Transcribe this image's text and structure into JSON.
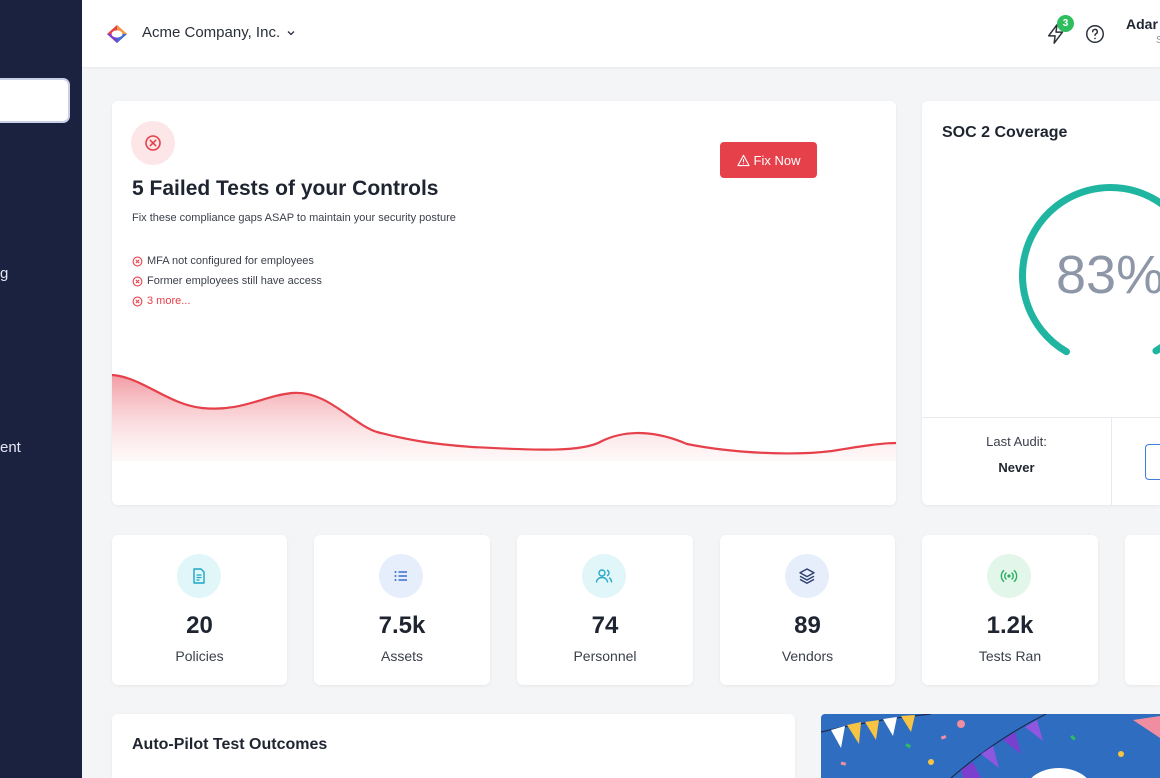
{
  "sidebar": {
    "partial_items": [
      "g",
      "ent"
    ]
  },
  "header": {
    "company": "Acme Company, Inc.",
    "notifications_count": "3",
    "user_name": "Adar",
    "user_sub": "S"
  },
  "failed_card": {
    "title": "5 Failed Tests of your Controls",
    "subtitle": "Fix these compliance gaps ASAP to maintain your security posture",
    "fix_button": "Fix Now",
    "items": [
      "MFA not configured for employees",
      "Former employees still have access",
      "3 more..."
    ]
  },
  "soc_card": {
    "title": "SOC 2 Coverage",
    "percent_text": "83%",
    "percent_value": 83,
    "last_audit_label": "Last Audit:",
    "last_audit_value": "Never"
  },
  "stats": [
    {
      "value": "20",
      "label": "Policies",
      "icon": "document-icon",
      "color": "#1aa7c4",
      "bg": "#e1f6f9"
    },
    {
      "value": "7.5k",
      "label": "Assets",
      "icon": "list-icon",
      "color": "#3d6fd0",
      "bg": "#e6eefb"
    },
    {
      "value": "74",
      "label": "Personnel",
      "icon": "users-icon",
      "color": "#29a8c9",
      "bg": "#e1f6f9"
    },
    {
      "value": "89",
      "label": "Vendors",
      "icon": "layers-icon",
      "color": "#2e3e6e",
      "bg": "#e6eefb"
    },
    {
      "value": "1.2k",
      "label": "Tests Ran",
      "icon": "broadcast-icon",
      "color": "#27ae60",
      "bg": "#e3f6ea"
    }
  ],
  "auto_pilot": {
    "title": "Auto-Pilot Test Outcomes"
  },
  "colors": {
    "sidebar": "#1b2240",
    "danger": "#e6404b",
    "gauge": "#1fb5a0",
    "badge": "#2ebd5f"
  }
}
